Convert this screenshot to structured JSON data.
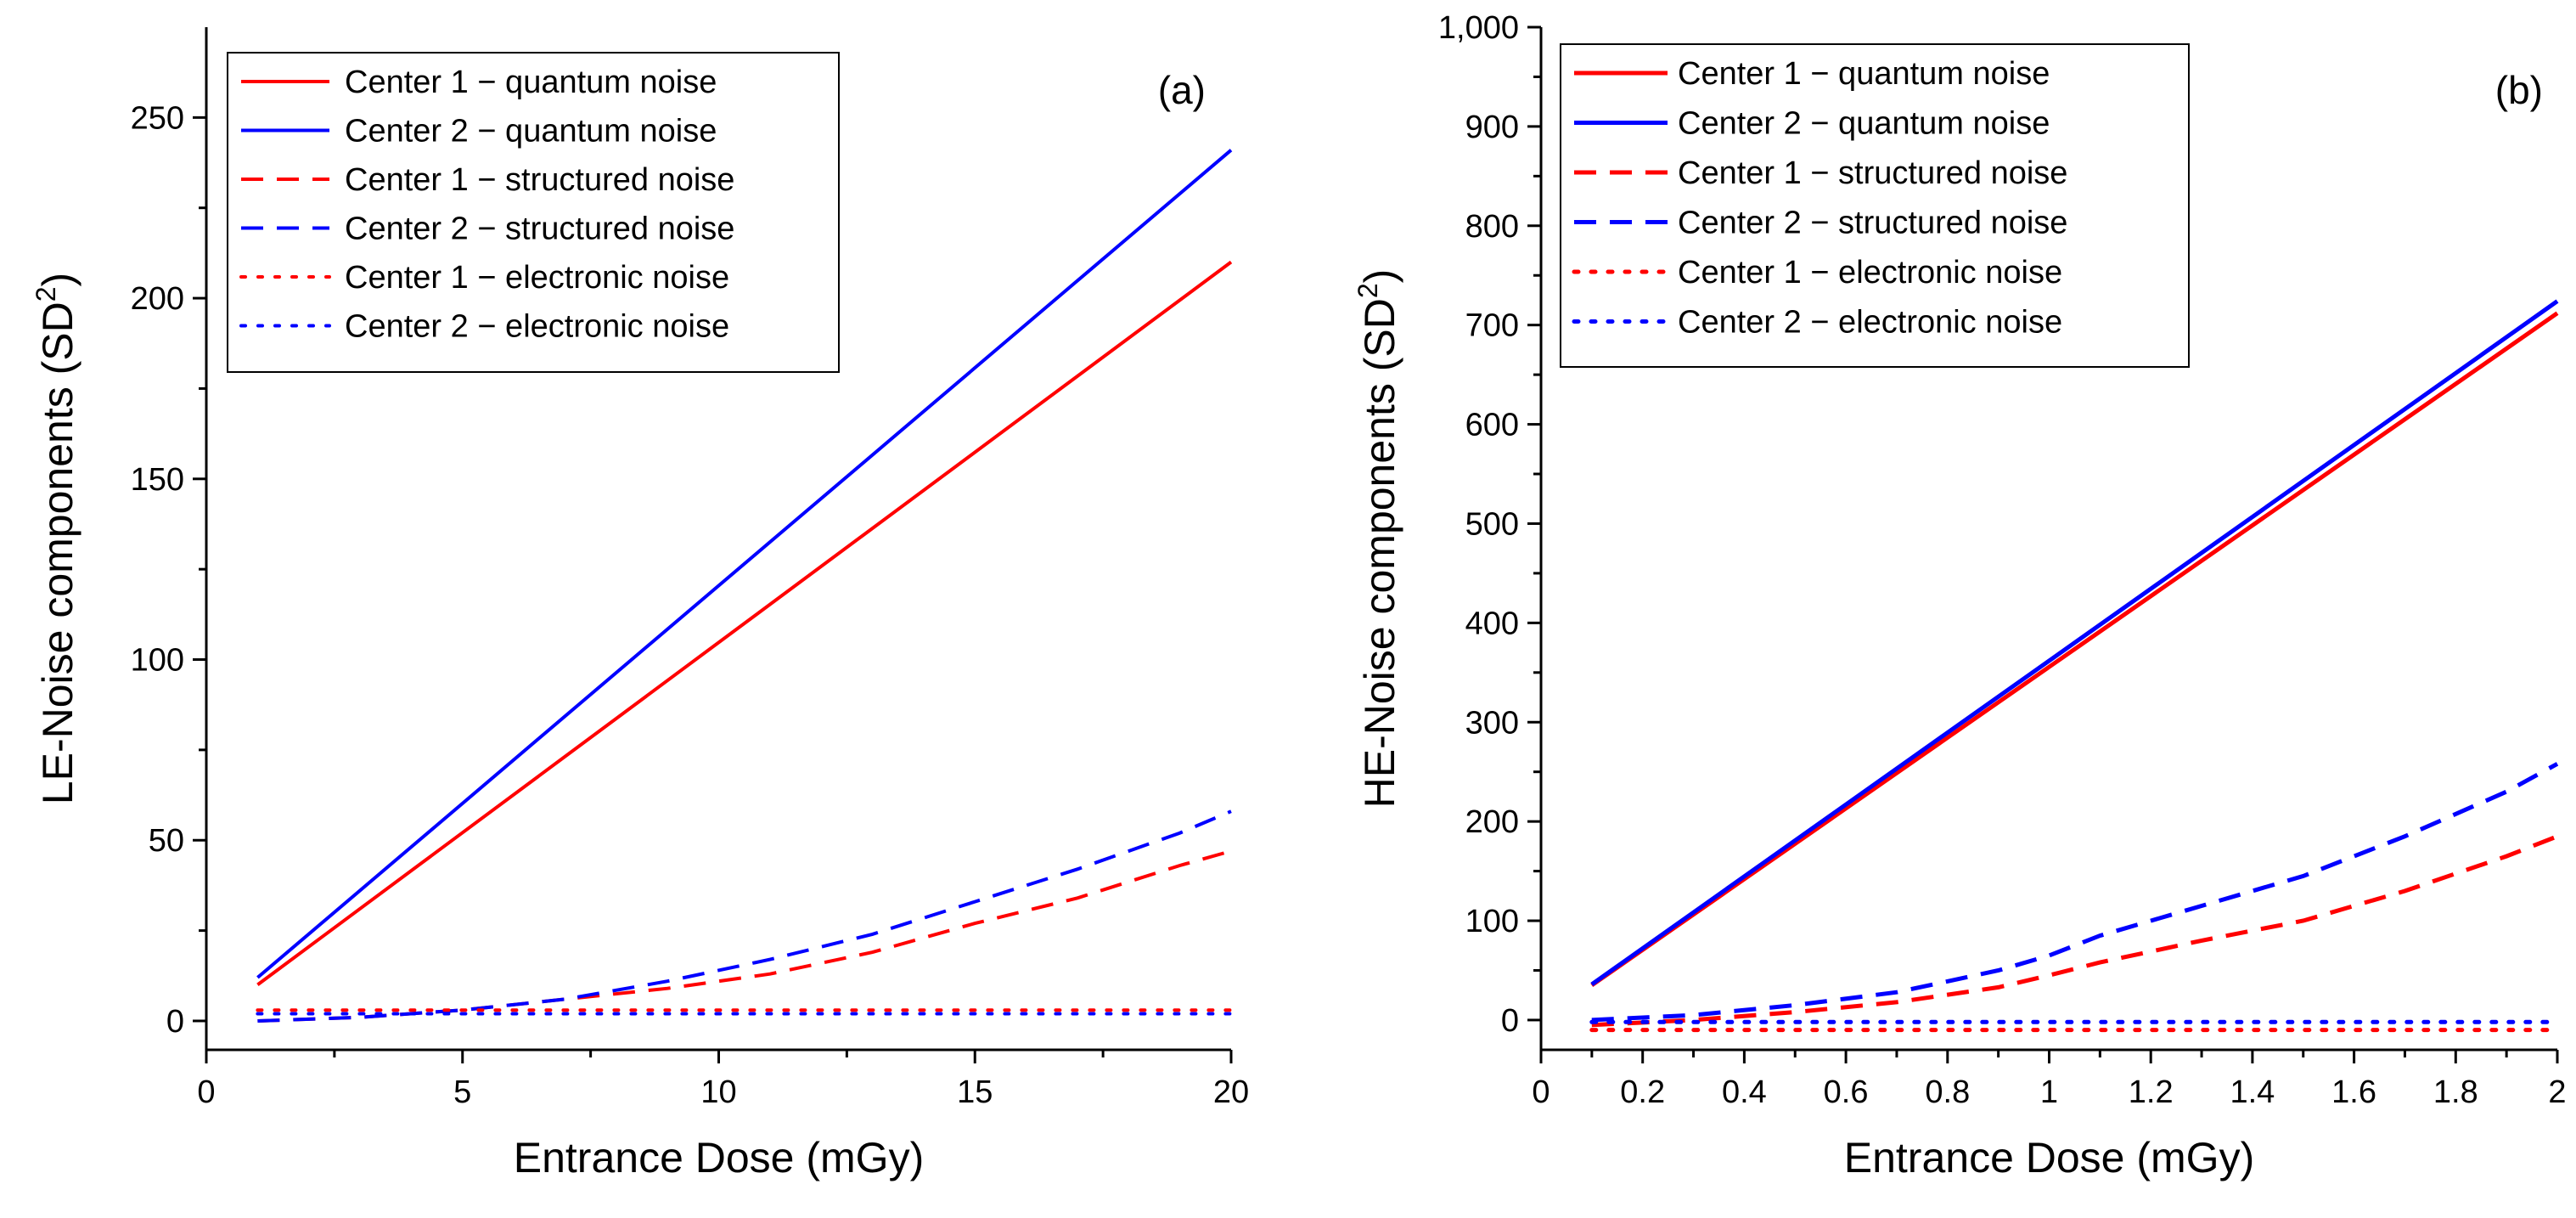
{
  "chart_data": [
    {
      "type": "line",
      "panel_label": "(a)",
      "xlabel": "Entrance Dose (mGy)",
      "ylabel": "LE-Noise components (SD",
      "ylabel_sup": "2",
      "ylabel_close": ")",
      "xlim": [
        0,
        20
      ],
      "ylim": [
        -8,
        275
      ],
      "xticks": [
        0,
        5,
        10,
        15,
        20
      ],
      "xtick_labels": [
        "0",
        "5",
        "10",
        "15",
        "20"
      ],
      "yticks": [
        0,
        50,
        100,
        150,
        200,
        250
      ],
      "ytick_labels": [
        "0",
        "50",
        "100",
        "150",
        "200",
        "250"
      ],
      "legend_position": "top-left",
      "series": [
        {
          "name": "Center 1 − quantum noise",
          "color": "#ff0000",
          "style": "solid",
          "weight": "thin",
          "x": [
            1,
            20
          ],
          "y": [
            10,
            210
          ]
        },
        {
          "name": "Center 2 − quantum noise",
          "color": "#0000ff",
          "style": "solid",
          "weight": "thin",
          "x": [
            1,
            20
          ],
          "y": [
            12,
            241
          ]
        },
        {
          "name": "Center 1 − structured noise",
          "color": "#ff0000",
          "style": "dashed",
          "weight": "thin",
          "x": [
            1,
            3,
            5,
            7,
            9,
            11,
            13,
            15,
            17,
            19,
            20
          ],
          "y": [
            0,
            1,
            3,
            6,
            9,
            13,
            19,
            27,
            34,
            43,
            47
          ]
        },
        {
          "name": "Center 2 − structured noise",
          "color": "#0000ff",
          "style": "dashed",
          "weight": "thin",
          "x": [
            1,
            3,
            5,
            7,
            9,
            11,
            13,
            15,
            17,
            19,
            20
          ],
          "y": [
            0,
            1,
            3,
            6,
            11,
            17,
            24,
            33,
            42,
            52,
            58
          ]
        },
        {
          "name": "Center 1 − electronic noise",
          "color": "#ff0000",
          "style": "dotted",
          "weight": "thin",
          "x": [
            1,
            20
          ],
          "y": [
            3,
            3
          ]
        },
        {
          "name": "Center 2 − electronic noise",
          "color": "#0000ff",
          "style": "dotted",
          "weight": "thin",
          "x": [
            1,
            20
          ],
          "y": [
            2,
            2
          ]
        }
      ]
    },
    {
      "type": "line",
      "panel_label": "(b)",
      "xlabel": "Entrance Dose (mGy)",
      "ylabel": "HE-Noise components (SD",
      "ylabel_sup": "2",
      "ylabel_close": ")",
      "xlim": [
        0,
        2
      ],
      "ylim": [
        -30,
        1000
      ],
      "xticks": [
        0,
        0.2,
        0.4,
        0.6,
        0.8,
        1,
        1.2,
        1.4,
        1.6,
        1.8,
        2
      ],
      "xtick_labels": [
        "0",
        "0.2",
        "0.4",
        "0.6",
        "0.8",
        "1",
        "1.2",
        "1.4",
        "1.6",
        "1.8",
        "2"
      ],
      "yticks": [
        0,
        100,
        200,
        300,
        400,
        500,
        600,
        700,
        800,
        900,
        1000
      ],
      "ytick_labels": [
        "0",
        "100",
        "200",
        "300",
        "400",
        "500",
        "600",
        "700",
        "800",
        "900",
        "1,000"
      ],
      "legend_position": "top-left",
      "series": [
        {
          "name": "Center 1 − quantum noise",
          "color": "#ff0000",
          "style": "solid",
          "weight": "thick",
          "x": [
            0.1,
            2
          ],
          "y": [
            35,
            712
          ]
        },
        {
          "name": "Center 2 − quantum noise",
          "color": "#0000ff",
          "style": "solid",
          "weight": "thick",
          "x": [
            0.1,
            2
          ],
          "y": [
            36,
            724
          ]
        },
        {
          "name": "Center 1 − structured noise",
          "color": "#ff0000",
          "style": "dashed",
          "weight": "thick",
          "x": [
            0.1,
            0.3,
            0.5,
            0.7,
            0.9,
            1.0,
            1.1,
            1.3,
            1.5,
            1.7,
            1.9,
            2.0
          ],
          "y": [
            -5,
            0,
            8,
            18,
            33,
            45,
            58,
            80,
            100,
            130,
            165,
            185
          ]
        },
        {
          "name": "Center 2 − structured noise",
          "color": "#0000ff",
          "style": "dashed",
          "weight": "thick",
          "x": [
            0.1,
            0.3,
            0.5,
            0.7,
            0.9,
            1.0,
            1.1,
            1.3,
            1.5,
            1.7,
            1.9,
            2.0
          ],
          "y": [
            0,
            5,
            15,
            28,
            50,
            65,
            85,
            115,
            145,
            185,
            230,
            258
          ]
        },
        {
          "name": "Center 1 − electronic noise",
          "color": "#ff0000",
          "style": "dotted",
          "weight": "thick",
          "x": [
            0.1,
            2
          ],
          "y": [
            -10,
            -10
          ]
        },
        {
          "name": "Center 2 − electronic noise",
          "color": "#0000ff",
          "style": "dotted",
          "weight": "thick",
          "x": [
            0.1,
            2
          ],
          "y": [
            -2,
            -2
          ]
        }
      ]
    }
  ]
}
